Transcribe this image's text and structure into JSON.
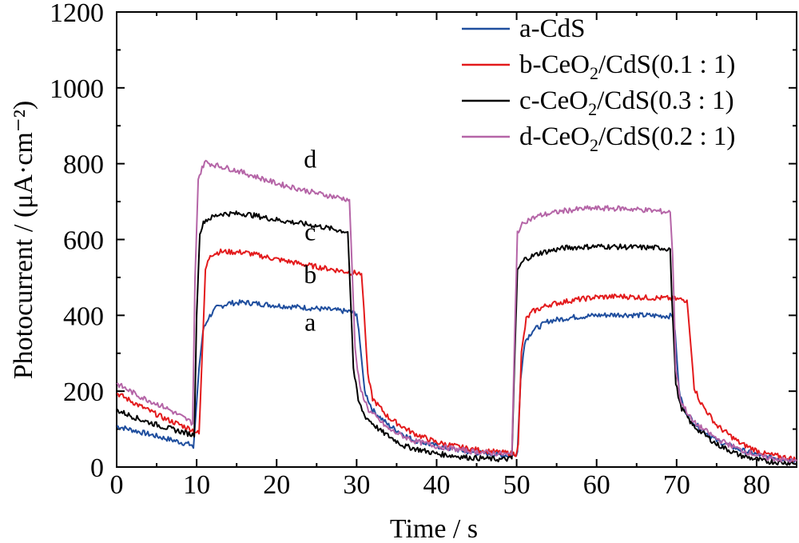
{
  "chart_data": {
    "type": "line",
    "xlabel": "Time / s",
    "ylabel": "Photocurrent / (μA·cm⁻²)",
    "xlim": [
      0,
      85
    ],
    "ylim": [
      0,
      1200
    ],
    "xticks": [
      "0",
      "10",
      "20",
      "30",
      "40",
      "50",
      "60",
      "70",
      "80"
    ],
    "yticks": [
      "0",
      "200",
      "400",
      "600",
      "800",
      "1000",
      "1200"
    ],
    "legend_position": "top-right",
    "series": [
      {
        "name": "a-CdS",
        "label_parts": [
          "a-CdS"
        ],
        "curve_label": "a",
        "color": "#1f4e9e",
        "points": [
          [
            0,
            108
          ],
          [
            3,
            92
          ],
          [
            6,
            76
          ],
          [
            9.4,
            58
          ],
          [
            9.6,
            50
          ],
          [
            10.3,
            260
          ],
          [
            10.8,
            360
          ],
          [
            11.5,
            395
          ],
          [
            12.5,
            420
          ],
          [
            14,
            432
          ],
          [
            16,
            434
          ],
          [
            20,
            426
          ],
          [
            25,
            418
          ],
          [
            29,
            410
          ],
          [
            30,
            405
          ],
          [
            30.4,
            330
          ],
          [
            31,
            200
          ],
          [
            32,
            150
          ],
          [
            34,
            110
          ],
          [
            37,
            72
          ],
          [
            40,
            55
          ],
          [
            44,
            40
          ],
          [
            48,
            32
          ],
          [
            49.8,
            30
          ],
          [
            50.1,
            40
          ],
          [
            50.5,
            230
          ],
          [
            51,
            330
          ],
          [
            52,
            360
          ],
          [
            54,
            385
          ],
          [
            57,
            395
          ],
          [
            60,
            400
          ],
          [
            63,
            402
          ],
          [
            66,
            400
          ],
          [
            69.5,
            398
          ],
          [
            69.8,
            360
          ],
          [
            70.3,
            200
          ],
          [
            71,
            150
          ],
          [
            72.5,
            110
          ],
          [
            75,
            70
          ],
          [
            78,
            45
          ],
          [
            81,
            28
          ],
          [
            85,
            18
          ]
        ]
      },
      {
        "name": "b-CeO2/CdS(0.1:1)",
        "label_parts": [
          "b-CeO",
          "2",
          "/CdS(0.1 : 1)"
        ],
        "curve_label": "b",
        "color": "#e31a1c",
        "points": [
          [
            0,
            195
          ],
          [
            3,
            160
          ],
          [
            6,
            128
          ],
          [
            9.5,
            98
          ],
          [
            10.3,
            88
          ],
          [
            10.7,
            300
          ],
          [
            11.1,
            520
          ],
          [
            11.7,
            560
          ],
          [
            13,
            568
          ],
          [
            16,
            566
          ],
          [
            20,
            548
          ],
          [
            25,
            528
          ],
          [
            29,
            514
          ],
          [
            30.6,
            510
          ],
          [
            30.9,
            420
          ],
          [
            31.4,
            240
          ],
          [
            32,
            180
          ],
          [
            34,
            130
          ],
          [
            37,
            90
          ],
          [
            40,
            65
          ],
          [
            44,
            48
          ],
          [
            48,
            38
          ],
          [
            49.9,
            35
          ],
          [
            50.2,
            60
          ],
          [
            50.6,
            300
          ],
          [
            51.2,
            390
          ],
          [
            52,
            410
          ],
          [
            54,
            428
          ],
          [
            57,
            440
          ],
          [
            60,
            448
          ],
          [
            63,
            450
          ],
          [
            66,
            447
          ],
          [
            69,
            445
          ],
          [
            71.3,
            440
          ],
          [
            71.7,
            340
          ],
          [
            72.2,
            210
          ],
          [
            73,
            170
          ],
          [
            75,
            110
          ],
          [
            78,
            62
          ],
          [
            81,
            35
          ],
          [
            85,
            20
          ]
        ]
      },
      {
        "name": "c-CeO2/CdS(0.3:1)",
        "label_parts": [
          "c-CeO",
          "2",
          "/CdS(0.3 : 1)"
        ],
        "curve_label": "c",
        "color": "#000000",
        "points": [
          [
            0,
            150
          ],
          [
            3,
            125
          ],
          [
            6,
            105
          ],
          [
            9.5,
            85
          ],
          [
            9.7,
            80
          ],
          [
            10,
            400
          ],
          [
            10.4,
            620
          ],
          [
            11,
            650
          ],
          [
            13,
            668
          ],
          [
            16,
            668
          ],
          [
            20,
            652
          ],
          [
            25,
            636
          ],
          [
            28.9,
            620
          ],
          [
            29.1,
            520
          ],
          [
            29.6,
            260
          ],
          [
            30.2,
            175
          ],
          [
            31,
            135
          ],
          [
            33,
            95
          ],
          [
            36,
            55
          ],
          [
            40,
            35
          ],
          [
            44,
            25
          ],
          [
            48,
            20
          ],
          [
            49.4,
            22
          ],
          [
            49.7,
            250
          ],
          [
            50.1,
            520
          ],
          [
            51,
            548
          ],
          [
            53,
            565
          ],
          [
            56,
            578
          ],
          [
            60,
            582
          ],
          [
            64,
            580
          ],
          [
            68,
            578
          ],
          [
            69.2,
            575
          ],
          [
            69.4,
            450
          ],
          [
            69.9,
            220
          ],
          [
            70.5,
            160
          ],
          [
            72,
            110
          ],
          [
            75,
            60
          ],
          [
            78,
            30
          ],
          [
            81,
            15
          ],
          [
            85,
            10
          ]
        ]
      },
      {
        "name": "d-CeO2/CdS(0.2:1)",
        "label_parts": [
          "d-CeO",
          "2",
          "/CdS(0.2 : 1)"
        ],
        "curve_label": "d",
        "color": "#b565a7",
        "points": [
          [
            0,
            220
          ],
          [
            3,
            185
          ],
          [
            6,
            158
          ],
          [
            9.2,
            120
          ],
          [
            9.5,
            115
          ],
          [
            9.8,
            500
          ],
          [
            10.2,
            760
          ],
          [
            11,
            805
          ],
          [
            12,
            798
          ],
          [
            15,
            782
          ],
          [
            20,
            748
          ],
          [
            25,
            722
          ],
          [
            29.1,
            705
          ],
          [
            29.3,
            600
          ],
          [
            29.8,
            310
          ],
          [
            30.4,
            210
          ],
          [
            31.5,
            150
          ],
          [
            34,
            100
          ],
          [
            37,
            70
          ],
          [
            40,
            55
          ],
          [
            44,
            42
          ],
          [
            48,
            35
          ],
          [
            49.4,
            32
          ],
          [
            49.7,
            300
          ],
          [
            50.1,
            620
          ],
          [
            51,
            648
          ],
          [
            53,
            664
          ],
          [
            56,
            676
          ],
          [
            59,
            682
          ],
          [
            63,
            682
          ],
          [
            66,
            678
          ],
          [
            69.2,
            672
          ],
          [
            69.5,
            560
          ],
          [
            69.9,
            260
          ],
          [
            70.5,
            175
          ],
          [
            72,
            120
          ],
          [
            75,
            75
          ],
          [
            78,
            45
          ],
          [
            81,
            25
          ],
          [
            85,
            15
          ]
        ]
      }
    ],
    "curve_label_positions": [
      {
        "label": "a",
        "x": 24.2,
        "y": 360
      },
      {
        "label": "b",
        "x": 24.2,
        "y": 485
      },
      {
        "label": "c",
        "x": 24.2,
        "y": 598
      },
      {
        "label": "d",
        "x": 24.2,
        "y": 790
      }
    ]
  }
}
